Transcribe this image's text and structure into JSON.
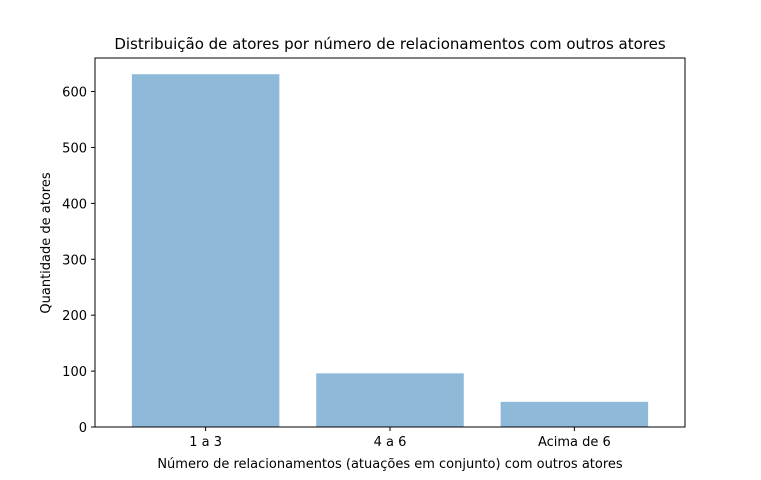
{
  "chart_data": {
    "type": "bar",
    "title": "Distribuição de atores por número de relacionamentos com outros atores",
    "xlabel": "Número de relacionamentos (atuações em conjunto) com outros atores",
    "ylabel": "Quantidade de atores",
    "categories": [
      "1 a 3",
      "4 a 6",
      "Acima de 6"
    ],
    "values": [
      631,
      96,
      45
    ],
    "ylim": [
      0,
      660
    ],
    "yticks": [
      0,
      100,
      200,
      300,
      400,
      500,
      600
    ],
    "bar_color": "#8fb9d9",
    "grid": false,
    "legend": false
  }
}
